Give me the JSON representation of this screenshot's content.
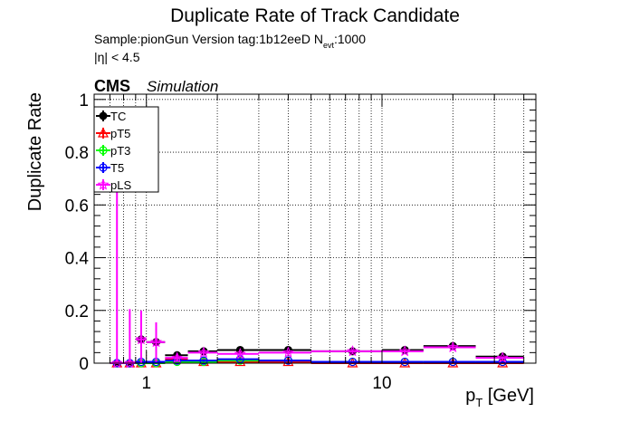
{
  "chart_data": {
    "type": "scatter",
    "title": "Duplicate Rate of Track Candidate",
    "info_line1_pre": "Sample:pionGun   Version tag:1b12eeD  N",
    "info_line1_sub": "evt",
    "info_line1_post": ":1000",
    "info_line2": "|η| < 4.5",
    "cms_label": "CMS",
    "cms_sub": "Simulation",
    "ylabel": "Duplicate Rate",
    "xlabel_main": "p",
    "xlabel_sub": "T",
    "xlabel_unit": " [GeV]",
    "x_scale": "log",
    "xlim": [
      0.6,
      45
    ],
    "ylim": [
      0,
      1.02
    ],
    "grid": true,
    "legend_position": "top-left",
    "x_ticks": [
      {
        "v": 1,
        "label": "1"
      },
      {
        "v": 10,
        "label": "10"
      }
    ],
    "y_ticks": [
      {
        "v": 0,
        "label": "0"
      },
      {
        "v": 0.2,
        "label": "0.2"
      },
      {
        "v": 0.4,
        "label": "0.4"
      },
      {
        "v": 0.6,
        "label": "0.6"
      },
      {
        "v": 0.8,
        "label": "0.8"
      },
      {
        "v": 1,
        "label": "1"
      }
    ],
    "series": [
      {
        "name": "TC",
        "color": "#000000",
        "marker": "filled-circle",
        "points": [
          {
            "x": 0.75,
            "x_lo": 0.7,
            "x_hi": 0.8,
            "y": 0.0,
            "err": 0.0
          },
          {
            "x": 0.85,
            "x_lo": 0.8,
            "x_hi": 0.9,
            "y": 0.0,
            "err": 0.0
          },
          {
            "x": 0.95,
            "x_lo": 0.9,
            "x_hi": 1.0,
            "y": 0.09,
            "err": 0.01
          },
          {
            "x": 1.1,
            "x_lo": 1.0,
            "x_hi": 1.2,
            "y": 0.08,
            "err": 0.02
          },
          {
            "x": 1.35,
            "x_lo": 1.2,
            "x_hi": 1.5,
            "y": 0.03,
            "err": 0.015
          },
          {
            "x": 1.75,
            "x_lo": 1.5,
            "x_hi": 2.0,
            "y": 0.045,
            "err": 0.01
          },
          {
            "x": 2.5,
            "x_lo": 2.0,
            "x_hi": 3.0,
            "y": 0.05,
            "err": 0.01
          },
          {
            "x": 4.0,
            "x_lo": 3.0,
            "x_hi": 5.0,
            "y": 0.05,
            "err": 0.008
          },
          {
            "x": 7.5,
            "x_lo": 5.0,
            "x_hi": 10.0,
            "y": 0.045,
            "err": 0.008
          },
          {
            "x": 12.5,
            "x_lo": 10.0,
            "x_hi": 15.0,
            "y": 0.05,
            "err": 0.008
          },
          {
            "x": 20.0,
            "x_lo": 15.0,
            "x_hi": 25.0,
            "y": 0.065,
            "err": 0.01
          },
          {
            "x": 32.5,
            "x_lo": 25.0,
            "x_hi": 40.0,
            "y": 0.025,
            "err": 0.006
          }
        ]
      },
      {
        "name": "pT5",
        "color": "#ff0000",
        "marker": "open-triangle",
        "points": [
          {
            "x": 0.75,
            "x_lo": 0.7,
            "x_hi": 0.8,
            "y": 0.0,
            "err": 0.0
          },
          {
            "x": 0.85,
            "x_lo": 0.8,
            "x_hi": 0.9,
            "y": 0.0,
            "err": 0.0
          },
          {
            "x": 0.95,
            "x_lo": 0.9,
            "x_hi": 1.0,
            "y": 0.0,
            "err": 0.0
          },
          {
            "x": 1.1,
            "x_lo": 1.0,
            "x_hi": 1.2,
            "y": 0.0,
            "err": 0.0
          },
          {
            "x": 1.35,
            "x_lo": 1.2,
            "x_hi": 1.5,
            "y": 0.015,
            "err": 0.01
          },
          {
            "x": 1.75,
            "x_lo": 1.5,
            "x_hi": 2.0,
            "y": 0.005,
            "err": 0.004
          },
          {
            "x": 2.5,
            "x_lo": 2.0,
            "x_hi": 3.0,
            "y": 0.005,
            "err": 0.004
          },
          {
            "x": 4.0,
            "x_lo": 3.0,
            "x_hi": 5.0,
            "y": 0.005,
            "err": 0.003
          },
          {
            "x": 7.5,
            "x_lo": 5.0,
            "x_hi": 10.0,
            "y": 0.0,
            "err": 0.0
          },
          {
            "x": 12.5,
            "x_lo": 10.0,
            "x_hi": 15.0,
            "y": 0.0,
            "err": 0.0
          },
          {
            "x": 20.0,
            "x_lo": 15.0,
            "x_hi": 25.0,
            "y": 0.0,
            "err": 0.0
          },
          {
            "x": 32.5,
            "x_lo": 25.0,
            "x_hi": 40.0,
            "y": 0.0,
            "err": 0.0
          }
        ]
      },
      {
        "name": "pT3",
        "color": "#00ff00",
        "marker": "open-circle",
        "points": [
          {
            "x": 0.75,
            "x_lo": 0.7,
            "x_hi": 0.8,
            "y": 0.0,
            "err": 0.0
          },
          {
            "x": 0.85,
            "x_lo": 0.8,
            "x_hi": 0.9,
            "y": 0.0,
            "err": 0.0
          },
          {
            "x": 0.95,
            "x_lo": 0.9,
            "x_hi": 1.0,
            "y": 0.0,
            "err": 0.0
          },
          {
            "x": 1.1,
            "x_lo": 1.0,
            "x_hi": 1.2,
            "y": 0.0,
            "err": 0.0
          },
          {
            "x": 1.35,
            "x_lo": 1.2,
            "x_hi": 1.5,
            "y": 0.005,
            "err": 0.004
          },
          {
            "x": 1.75,
            "x_lo": 1.5,
            "x_hi": 2.0,
            "y": 0.005,
            "err": 0.003
          },
          {
            "x": 2.5,
            "x_lo": 2.0,
            "x_hi": 3.0,
            "y": 0.01,
            "err": 0.004
          },
          {
            "x": 4.0,
            "x_lo": 3.0,
            "x_hi": 5.0,
            "y": 0.01,
            "err": 0.003
          },
          {
            "x": 7.5,
            "x_lo": 5.0,
            "x_hi": 10.0,
            "y": 0.005,
            "err": 0.002
          },
          {
            "x": 12.5,
            "x_lo": 10.0,
            "x_hi": 15.0,
            "y": 0.005,
            "err": 0.002
          },
          {
            "x": 20.0,
            "x_lo": 15.0,
            "x_hi": 25.0,
            "y": 0.005,
            "err": 0.002
          },
          {
            "x": 32.5,
            "x_lo": 25.0,
            "x_hi": 40.0,
            "y": 0.005,
            "err": 0.002
          }
        ]
      },
      {
        "name": "T5",
        "color": "#0000ff",
        "marker": "open-circle",
        "points": [
          {
            "x": 0.75,
            "x_lo": 0.7,
            "x_hi": 0.8,
            "y": 0.0,
            "err": 0.0
          },
          {
            "x": 0.85,
            "x_lo": 0.8,
            "x_hi": 0.9,
            "y": 0.0,
            "err": 0.0
          },
          {
            "x": 0.95,
            "x_lo": 0.9,
            "x_hi": 1.0,
            "y": 0.005,
            "err": 0.004
          },
          {
            "x": 1.1,
            "x_lo": 1.0,
            "x_hi": 1.2,
            "y": 0.005,
            "err": 0.004
          },
          {
            "x": 1.35,
            "x_lo": 1.2,
            "x_hi": 1.5,
            "y": 0.01,
            "err": 0.006
          },
          {
            "x": 1.75,
            "x_lo": 1.5,
            "x_hi": 2.0,
            "y": 0.01,
            "err": 0.005
          },
          {
            "x": 2.5,
            "x_lo": 2.0,
            "x_hi": 3.0,
            "y": 0.015,
            "err": 0.005
          },
          {
            "x": 4.0,
            "x_lo": 3.0,
            "x_hi": 5.0,
            "y": 0.01,
            "err": 0.004
          },
          {
            "x": 7.5,
            "x_lo": 5.0,
            "x_hi": 10.0,
            "y": 0.005,
            "err": 0.003
          },
          {
            "x": 12.5,
            "x_lo": 10.0,
            "x_hi": 15.0,
            "y": 0.005,
            "err": 0.003
          },
          {
            "x": 20.0,
            "x_lo": 15.0,
            "x_hi": 25.0,
            "y": 0.005,
            "err": 0.003
          },
          {
            "x": 32.5,
            "x_lo": 25.0,
            "x_hi": 40.0,
            "y": 0.005,
            "err": 0.003
          }
        ]
      },
      {
        "name": "pLS",
        "color": "#ff00ff",
        "marker": "open-star",
        "points": [
          {
            "x": 0.75,
            "x_lo": 0.7,
            "x_hi": 0.8,
            "y": 0.0,
            "err": 0.65
          },
          {
            "x": 0.85,
            "x_lo": 0.8,
            "x_hi": 0.9,
            "y": 0.0,
            "err": 0.205
          },
          {
            "x": 0.95,
            "x_lo": 0.9,
            "x_hi": 1.0,
            "y": 0.09,
            "err": 0.11
          },
          {
            "x": 1.1,
            "x_lo": 1.0,
            "x_hi": 1.2,
            "y": 0.08,
            "err": 0.075
          },
          {
            "x": 1.35,
            "x_lo": 1.2,
            "x_hi": 1.5,
            "y": 0.02,
            "err": 0.015
          },
          {
            "x": 1.75,
            "x_lo": 1.5,
            "x_hi": 2.0,
            "y": 0.04,
            "err": 0.01
          },
          {
            "x": 2.5,
            "x_lo": 2.0,
            "x_hi": 3.0,
            "y": 0.035,
            "err": 0.01
          },
          {
            "x": 4.0,
            "x_lo": 3.0,
            "x_hi": 5.0,
            "y": 0.04,
            "err": 0.008
          },
          {
            "x": 7.5,
            "x_lo": 5.0,
            "x_hi": 10.0,
            "y": 0.045,
            "err": 0.008
          },
          {
            "x": 12.5,
            "x_lo": 10.0,
            "x_hi": 15.0,
            "y": 0.045,
            "err": 0.008
          },
          {
            "x": 20.0,
            "x_lo": 15.0,
            "x_hi": 25.0,
            "y": 0.06,
            "err": 0.01
          },
          {
            "x": 32.5,
            "x_lo": 25.0,
            "x_hi": 40.0,
            "y": 0.02,
            "err": 0.006
          }
        ]
      }
    ]
  }
}
